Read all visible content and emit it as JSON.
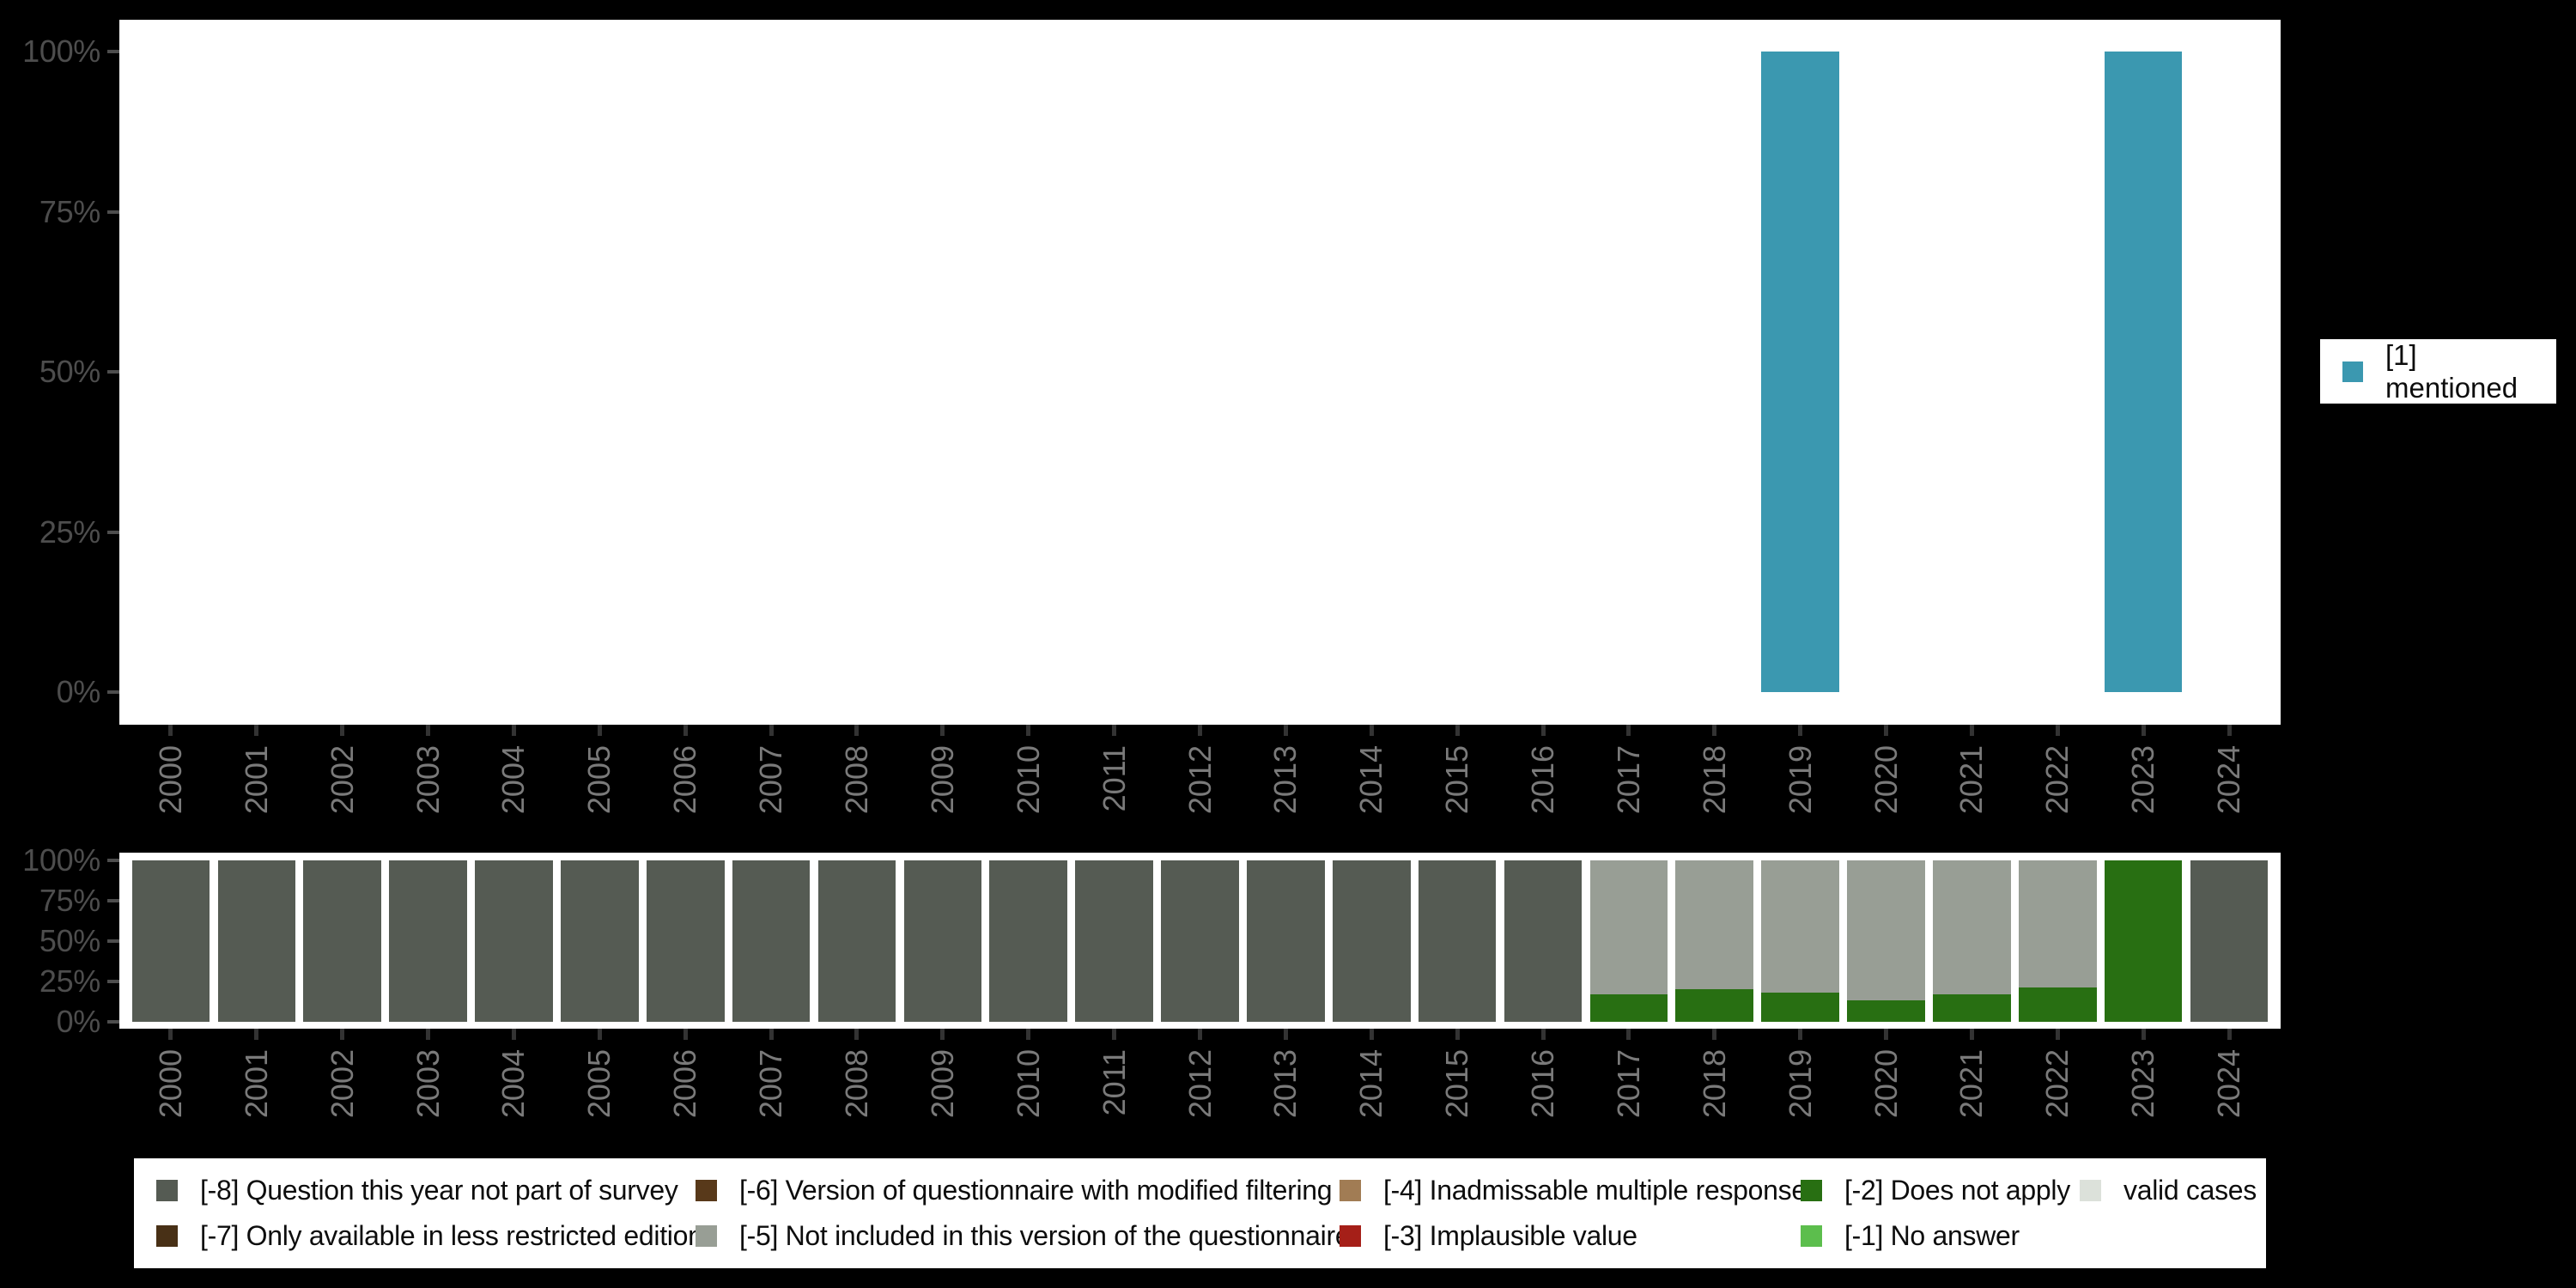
{
  "colors": {
    "background": "#000000",
    "plot_background": "#ffffff",
    "axis_text": "#4d4d4d",
    "year_text": "#7a7a7a",
    "mentioned": "#3B98B0"
  },
  "y_ticks": [
    "100%",
    "75%",
    "50%",
    "25%",
    "0%"
  ],
  "years": [
    "2000",
    "2001",
    "2002",
    "2003",
    "2004",
    "2005",
    "2006",
    "2007",
    "2008",
    "2009",
    "2010",
    "2011",
    "2012",
    "2013",
    "2014",
    "2015",
    "2016",
    "2017",
    "2018",
    "2019",
    "2020",
    "2021",
    "2022",
    "2023",
    "2024"
  ],
  "top_legend": {
    "label": "[1] mentioned",
    "color": "#3B98B0"
  },
  "missing_legend": {
    "items": [
      {
        "code": "-8",
        "label": "[-8] Question this year not part of survey",
        "color": "#555B53"
      },
      {
        "code": "-7",
        "label": "[-7] Only available in less restricted edition",
        "color": "#483016"
      },
      {
        "code": "-6",
        "label": "[-6] Version of questionnaire with modified filtering",
        "color": "#58391A"
      },
      {
        "code": "-5",
        "label": "[-5] Not included in this version of the questionnaire",
        "color": "#989E95"
      },
      {
        "code": "-4",
        "label": "[-4] Inadmissable multiple response",
        "color": "#A17C54"
      },
      {
        "code": "-3",
        "label": "[-3] Implausible value",
        "color": "#A51F18"
      },
      {
        "code": "-2",
        "label": "[-2] Does not apply",
        "color": "#286F12"
      },
      {
        "code": "-1",
        "label": "[-1] No answer",
        "color": "#5CBE4D"
      },
      {
        "code": "valid",
        "label": "valid cases",
        "color": "#DCE1DA"
      }
    ]
  },
  "chart_data": [
    {
      "type": "bar",
      "title": "",
      "categories": [
        "2000",
        "2001",
        "2002",
        "2003",
        "2004",
        "2005",
        "2006",
        "2007",
        "2008",
        "2009",
        "2010",
        "2011",
        "2012",
        "2013",
        "2014",
        "2015",
        "2016",
        "2017",
        "2018",
        "2019",
        "2020",
        "2021",
        "2022",
        "2023",
        "2024"
      ],
      "series": [
        {
          "name": "[1] mentioned",
          "color": "#3B98B0",
          "values": [
            0,
            0,
            0,
            0,
            0,
            0,
            0,
            0,
            0,
            0,
            0,
            0,
            0,
            0,
            0,
            0,
            0,
            0,
            0,
            100,
            0,
            0,
            0,
            100,
            0
          ]
        }
      ],
      "xlabel": "",
      "ylabel": "",
      "ylim": [
        0,
        100
      ],
      "grid": false,
      "legend_position": "right"
    },
    {
      "type": "bar",
      "stacked": true,
      "title": "",
      "categories": [
        "2000",
        "2001",
        "2002",
        "2003",
        "2004",
        "2005",
        "2006",
        "2007",
        "2008",
        "2009",
        "2010",
        "2011",
        "2012",
        "2013",
        "2014",
        "2015",
        "2016",
        "2017",
        "2018",
        "2019",
        "2020",
        "2021",
        "2022",
        "2023",
        "2024"
      ],
      "series": [
        {
          "name": "[-8] Question this year not part of survey",
          "color": "#555B53",
          "values": [
            100,
            100,
            100,
            100,
            100,
            100,
            100,
            100,
            100,
            100,
            100,
            100,
            100,
            100,
            100,
            100,
            100,
            0,
            0,
            0,
            0,
            0,
            0,
            0,
            100
          ]
        },
        {
          "name": "[-2] Does not apply",
          "color": "#286F12",
          "values": [
            0,
            0,
            0,
            0,
            0,
            0,
            0,
            0,
            0,
            0,
            0,
            0,
            0,
            0,
            0,
            0,
            0,
            17,
            20,
            18,
            13,
            17,
            21,
            100,
            0
          ]
        },
        {
          "name": "[-5] Not included in this version of the questionnaire",
          "color": "#989E95",
          "values": [
            0,
            0,
            0,
            0,
            0,
            0,
            0,
            0,
            0,
            0,
            0,
            0,
            0,
            0,
            0,
            0,
            0,
            83,
            80,
            82,
            87,
            83,
            79,
            0,
            0
          ]
        }
      ],
      "xlabel": "",
      "ylabel": "",
      "ylim": [
        0,
        100
      ],
      "grid": false,
      "legend_position": "bottom"
    }
  ]
}
